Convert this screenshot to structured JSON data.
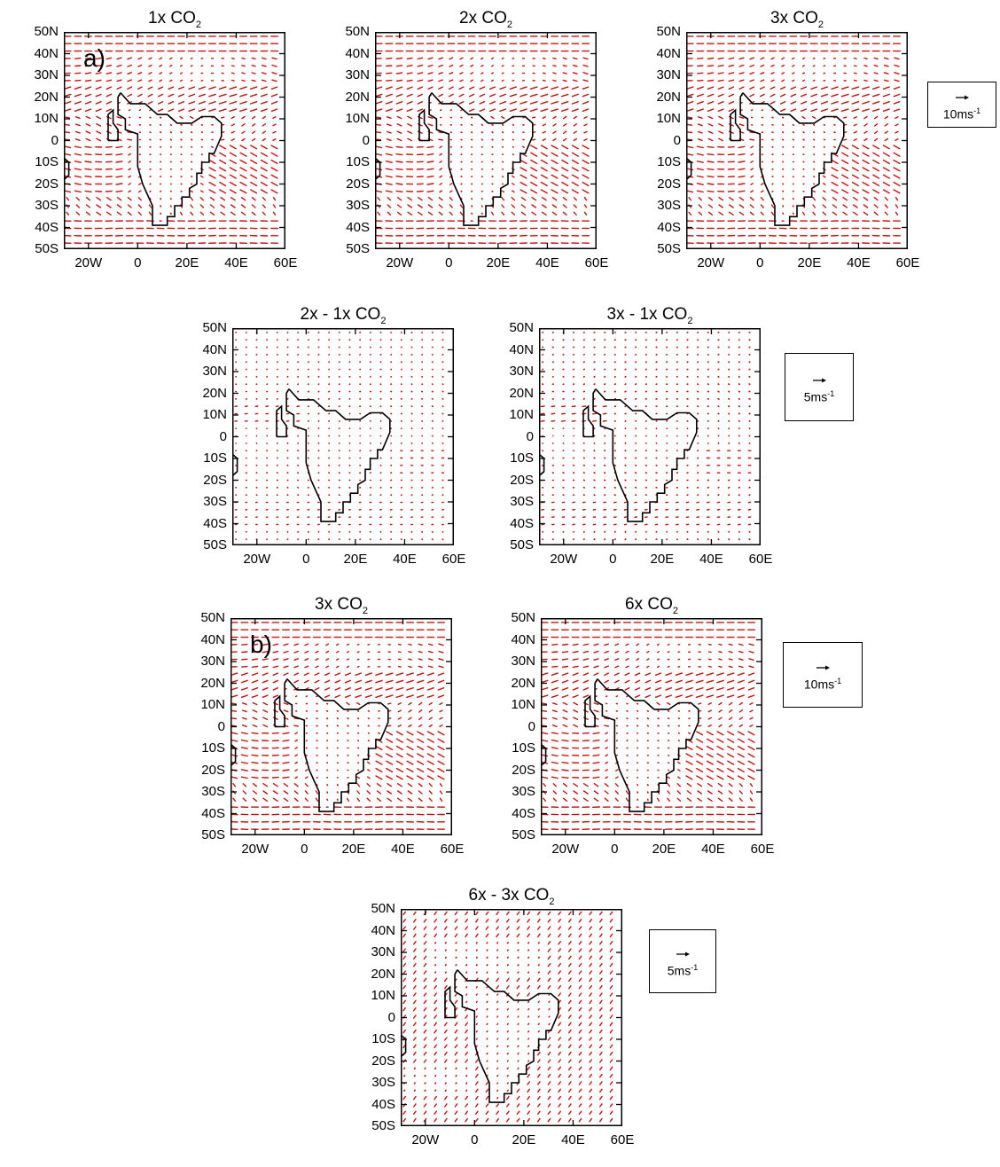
{
  "chart_data": {
    "type": "vector-field",
    "x_tick_labels": [
      "20W",
      "0",
      "20E",
      "40E",
      "60E"
    ],
    "x_tick_values": [
      -20,
      0,
      20,
      40,
      60
    ],
    "y_tick_labels": [
      "50N",
      "40N",
      "30N",
      "20N",
      "10N",
      "0",
      "10S",
      "20S",
      "30S",
      "40S",
      "50S"
    ],
    "y_tick_values": [
      50,
      40,
      30,
      20,
      10,
      0,
      -10,
      -20,
      -30,
      -40,
      -50
    ],
    "xlim": [
      -30,
      60
    ],
    "ylim": [
      -50,
      50
    ],
    "panels": [
      {
        "id": "p1",
        "title": "1x CO",
        "title_sub": "2",
        "letter": "a)",
        "field": "mean",
        "amp": 1.0
      },
      {
        "id": "p2",
        "title": "2x CO",
        "title_sub": "2",
        "letter": "",
        "field": "mean",
        "amp": 1.0
      },
      {
        "id": "p3",
        "title": "3x CO",
        "title_sub": "2",
        "letter": "",
        "field": "mean",
        "amp": 1.0
      },
      {
        "id": "p4",
        "title": "2x - 1x CO",
        "title_sub": "2",
        "letter": "",
        "field": "diff",
        "amp": 0.5
      },
      {
        "id": "p5",
        "title": "3x - 1x CO",
        "title_sub": "2",
        "letter": "",
        "field": "diff",
        "amp": 0.75
      },
      {
        "id": "p6",
        "title": "3x CO",
        "title_sub": "2",
        "letter": "b)",
        "field": "mean",
        "amp": 1.0
      },
      {
        "id": "p7",
        "title": "6x CO",
        "title_sub": "2",
        "letter": "",
        "field": "mean",
        "amp": 1.0
      },
      {
        "id": "p8",
        "title": "6x - 3x CO",
        "title_sub": "2",
        "letter": "",
        "field": "diag",
        "amp": 1.0
      }
    ],
    "reference_vectors": [
      {
        "id": "r1",
        "value": "10",
        "unit": "ms",
        "exp": "-1"
      },
      {
        "id": "r2",
        "value": "5",
        "unit": "ms",
        "exp": "-1"
      },
      {
        "id": "r3",
        "value": "10",
        "unit": "ms",
        "exp": "-1"
      },
      {
        "id": "r4",
        "value": "5",
        "unit": "ms",
        "exp": "-1"
      }
    ],
    "vector_color": "#cc1111",
    "coast_color": "#000000"
  }
}
